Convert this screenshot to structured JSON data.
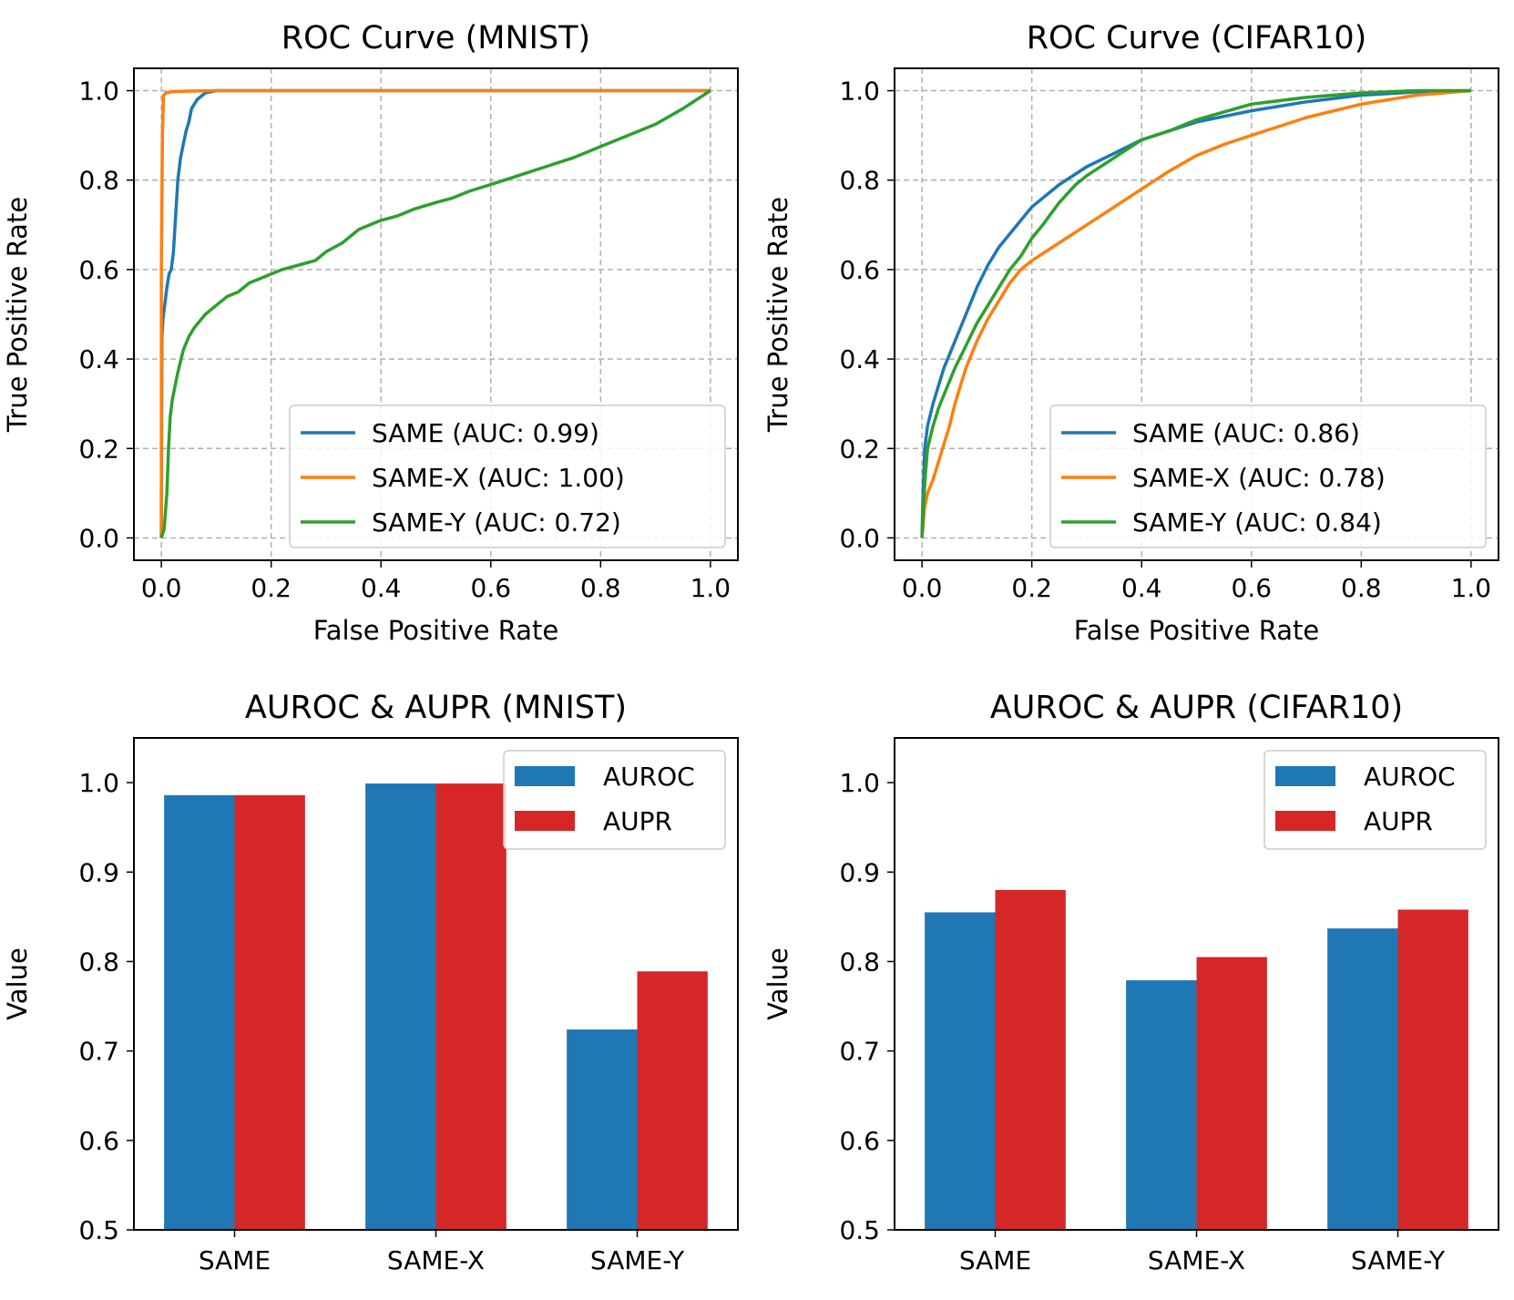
{
  "colors": {
    "blue": "#1f77b4",
    "orange": "#ff7f0e",
    "green": "#2ca02c",
    "red": "#d62728",
    "grid": "#b0b0b0"
  },
  "chart_data": [
    {
      "type": "line",
      "title": "ROC Curve (MNIST)",
      "xlabel": "False Positive Rate",
      "ylabel": "True Positive Rate",
      "xlim": [
        -0.05,
        1.05
      ],
      "ylim": [
        -0.05,
        1.05
      ],
      "xticks": [
        "0.0",
        "0.2",
        "0.4",
        "0.6",
        "0.8",
        "1.0"
      ],
      "yticks": [
        "0.0",
        "0.2",
        "0.4",
        "0.6",
        "0.8",
        "1.0"
      ],
      "grid": true,
      "legend_position": "lower-right",
      "series": [
        {
          "name": "SAME (AUC: 0.99)",
          "color": "blue",
          "x": [
            0,
            0.001,
            0.003,
            0.006,
            0.01,
            0.014,
            0.018,
            0.022,
            0.026,
            0.03,
            0.035,
            0.04,
            0.045,
            0.05,
            0.055,
            0.06,
            0.065,
            0.07,
            0.08,
            0.1,
            0.2,
            0.4,
            0.6,
            0.8,
            1.0
          ],
          "y": [
            0,
            0.45,
            0.49,
            0.52,
            0.56,
            0.59,
            0.6,
            0.64,
            0.72,
            0.8,
            0.85,
            0.88,
            0.91,
            0.93,
            0.96,
            0.97,
            0.98,
            0.985,
            0.995,
            1.0,
            1.0,
            1.0,
            1.0,
            1.0,
            1.0
          ]
        },
        {
          "name": "SAME-X (AUC: 1.00)",
          "color": "orange",
          "x": [
            0,
            0.0,
            0.002,
            0.004,
            0.008,
            0.02,
            0.05,
            0.1,
            0.2,
            0.4,
            0.6,
            0.8,
            1.0
          ],
          "y": [
            0,
            0.6,
            0.9,
            0.99,
            0.995,
            0.998,
            0.999,
            1.0,
            1.0,
            1.0,
            1.0,
            1.0,
            1.0
          ]
        },
        {
          "name": "SAME-Y (AUC: 0.72)",
          "color": "green",
          "x": [
            0,
            0.005,
            0.01,
            0.013,
            0.016,
            0.02,
            0.025,
            0.03,
            0.04,
            0.05,
            0.06,
            0.08,
            0.1,
            0.12,
            0.14,
            0.16,
            0.18,
            0.2,
            0.22,
            0.25,
            0.28,
            0.3,
            0.33,
            0.36,
            0.38,
            0.4,
            0.43,
            0.46,
            0.5,
            0.53,
            0.56,
            0.6,
            0.65,
            0.7,
            0.75,
            0.8,
            0.85,
            0.9,
            0.95,
            1.0
          ],
          "y": [
            0,
            0.02,
            0.1,
            0.2,
            0.27,
            0.31,
            0.34,
            0.37,
            0.42,
            0.45,
            0.47,
            0.5,
            0.52,
            0.54,
            0.55,
            0.57,
            0.58,
            0.59,
            0.6,
            0.61,
            0.62,
            0.64,
            0.66,
            0.69,
            0.7,
            0.71,
            0.72,
            0.735,
            0.75,
            0.76,
            0.775,
            0.79,
            0.81,
            0.83,
            0.85,
            0.875,
            0.9,
            0.925,
            0.96,
            1.0
          ]
        }
      ]
    },
    {
      "type": "line",
      "title": "ROC Curve (CIFAR10)",
      "xlabel": "False Positive Rate",
      "ylabel": "True Positive Rate",
      "xlim": [
        -0.05,
        1.05
      ],
      "ylim": [
        -0.05,
        1.05
      ],
      "xticks": [
        "0.0",
        "0.2",
        "0.4",
        "0.6",
        "0.8",
        "1.0"
      ],
      "yticks": [
        "0.0",
        "0.2",
        "0.4",
        "0.6",
        "0.8",
        "1.0"
      ],
      "grid": true,
      "legend_position": "lower-right",
      "series": [
        {
          "name": "SAME (AUC: 0.86)",
          "color": "blue",
          "x": [
            0,
            0.002,
            0.005,
            0.01,
            0.02,
            0.03,
            0.04,
            0.05,
            0.06,
            0.08,
            0.1,
            0.12,
            0.14,
            0.16,
            0.18,
            0.2,
            0.25,
            0.3,
            0.35,
            0.4,
            0.45,
            0.5,
            0.6,
            0.7,
            0.8,
            0.9,
            1.0
          ],
          "y": [
            0,
            0.1,
            0.2,
            0.25,
            0.3,
            0.34,
            0.38,
            0.41,
            0.44,
            0.5,
            0.56,
            0.61,
            0.65,
            0.68,
            0.71,
            0.74,
            0.79,
            0.83,
            0.86,
            0.89,
            0.91,
            0.93,
            0.955,
            0.975,
            0.99,
            0.997,
            1.0
          ]
        },
        {
          "name": "SAME-X (AUC: 0.78)",
          "color": "orange",
          "x": [
            0,
            0.005,
            0.01,
            0.02,
            0.03,
            0.04,
            0.05,
            0.06,
            0.07,
            0.08,
            0.1,
            0.12,
            0.14,
            0.16,
            0.18,
            0.2,
            0.25,
            0.3,
            0.35,
            0.4,
            0.45,
            0.5,
            0.55,
            0.6,
            0.7,
            0.8,
            0.9,
            1.0
          ],
          "y": [
            0,
            0.07,
            0.1,
            0.13,
            0.17,
            0.21,
            0.25,
            0.3,
            0.34,
            0.38,
            0.44,
            0.49,
            0.53,
            0.57,
            0.6,
            0.62,
            0.66,
            0.7,
            0.74,
            0.78,
            0.82,
            0.855,
            0.88,
            0.9,
            0.94,
            0.97,
            0.99,
            1.0
          ]
        },
        {
          "name": "SAME-Y (AUC: 0.84)",
          "color": "green",
          "x": [
            0,
            0.003,
            0.006,
            0.01,
            0.02,
            0.03,
            0.04,
            0.05,
            0.06,
            0.08,
            0.1,
            0.12,
            0.14,
            0.16,
            0.18,
            0.2,
            0.22,
            0.25,
            0.28,
            0.3,
            0.35,
            0.4,
            0.45,
            0.5,
            0.6,
            0.7,
            0.8,
            0.9,
            1.0
          ],
          "y": [
            0,
            0.08,
            0.14,
            0.2,
            0.25,
            0.29,
            0.32,
            0.35,
            0.38,
            0.43,
            0.48,
            0.52,
            0.56,
            0.6,
            0.63,
            0.67,
            0.7,
            0.75,
            0.79,
            0.81,
            0.85,
            0.89,
            0.91,
            0.935,
            0.97,
            0.985,
            0.995,
            1.0,
            1.0
          ]
        }
      ]
    },
    {
      "type": "bar",
      "title": "AUROC & AUPR (MNIST)",
      "xlabel": "",
      "ylabel": "Value",
      "ylim": [
        0.5,
        1.05
      ],
      "categories": [
        "SAME",
        "SAME-X",
        "SAME-Y"
      ],
      "yticks": [
        "0.5",
        "0.6",
        "0.7",
        "0.8",
        "0.9",
        "1.0"
      ],
      "grid": false,
      "legend_position": "top-right",
      "series": [
        {
          "name": "AUROC",
          "color": "blue",
          "values": [
            0.986,
            0.999,
            0.724
          ]
        },
        {
          "name": "AUPR",
          "color": "red",
          "values": [
            0.986,
            0.999,
            0.789
          ]
        }
      ]
    },
    {
      "type": "bar",
      "title": "AUROC & AUPR (CIFAR10)",
      "xlabel": "",
      "ylabel": "Value",
      "ylim": [
        0.5,
        1.05
      ],
      "categories": [
        "SAME",
        "SAME-X",
        "SAME-Y"
      ],
      "yticks": [
        "0.5",
        "0.6",
        "0.7",
        "0.8",
        "0.9",
        "1.0"
      ],
      "grid": false,
      "legend_position": "top-right",
      "series": [
        {
          "name": "AUROC",
          "color": "blue",
          "values": [
            0.855,
            0.779,
            0.837
          ]
        },
        {
          "name": "AUPR",
          "color": "red",
          "values": [
            0.88,
            0.805,
            0.858
          ]
        }
      ]
    }
  ]
}
